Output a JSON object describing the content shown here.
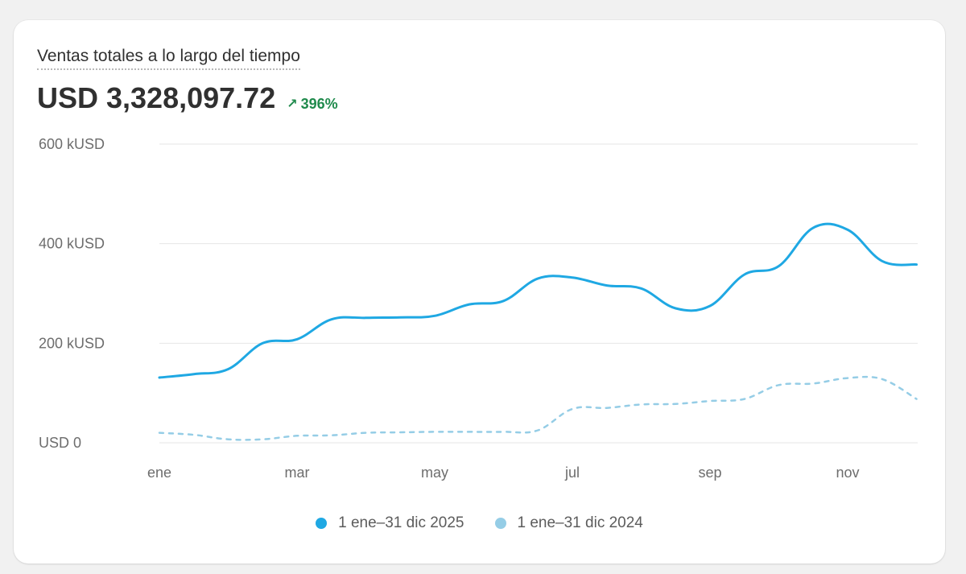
{
  "card": {
    "title": "Ventas totales a lo largo del tiempo",
    "total": "USD 3,328,097.72",
    "delta": "396%",
    "delta_icon": "arrow-up-right-icon",
    "delta_color": "#1f8a4c"
  },
  "chart_data": {
    "type": "line",
    "title": "Ventas totales a lo largo del tiempo",
    "xlabel": "",
    "ylabel": "",
    "x_tick_labels": [
      "ene",
      "mar",
      "may",
      "jul",
      "sep",
      "nov"
    ],
    "y_tick_labels": [
      "USD 0",
      "200 kUSD",
      "400 kUSD",
      "600 kUSD"
    ],
    "y_ticks": [
      0,
      200,
      400,
      600
    ],
    "ylim": [
      0,
      600
    ],
    "grid": "horizontal",
    "legend_position": "bottom-center",
    "series": [
      {
        "name": "1 ene–31 dic 2025",
        "color": "#1fa8e3",
        "style": "solid",
        "points": [
          [
            0,
            131
          ],
          [
            0.5,
            138
          ],
          [
            1,
            148
          ],
          [
            1.5,
            200
          ],
          [
            2,
            208
          ],
          [
            2.5,
            248
          ],
          [
            3,
            251
          ],
          [
            3.5,
            252
          ],
          [
            4,
            255
          ],
          [
            4.5,
            278
          ],
          [
            5,
            285
          ],
          [
            5.5,
            330
          ],
          [
            6,
            332
          ],
          [
            6.5,
            316
          ],
          [
            7,
            310
          ],
          [
            7.5,
            270
          ],
          [
            8,
            275
          ],
          [
            8.5,
            338
          ],
          [
            9,
            355
          ],
          [
            9.5,
            432
          ],
          [
            10,
            428
          ],
          [
            10.5,
            365
          ],
          [
            11,
            358
          ]
        ]
      },
      {
        "name": "1 ene–31 dic 2024",
        "color": "#95cde6",
        "style": "dashed",
        "points": [
          [
            0,
            20
          ],
          [
            0.5,
            16
          ],
          [
            1,
            7
          ],
          [
            1.5,
            7
          ],
          [
            2,
            14
          ],
          [
            2.5,
            15
          ],
          [
            3,
            20
          ],
          [
            3.5,
            21
          ],
          [
            4,
            22
          ],
          [
            4.5,
            22
          ],
          [
            5,
            22
          ],
          [
            5.5,
            25
          ],
          [
            6,
            68
          ],
          [
            6.5,
            70
          ],
          [
            7,
            77
          ],
          [
            7.5,
            78
          ],
          [
            8,
            84
          ],
          [
            8.5,
            88
          ],
          [
            9,
            116
          ],
          [
            9.5,
            119
          ],
          [
            10,
            130
          ],
          [
            10.5,
            128
          ],
          [
            11,
            88
          ]
        ]
      }
    ]
  }
}
